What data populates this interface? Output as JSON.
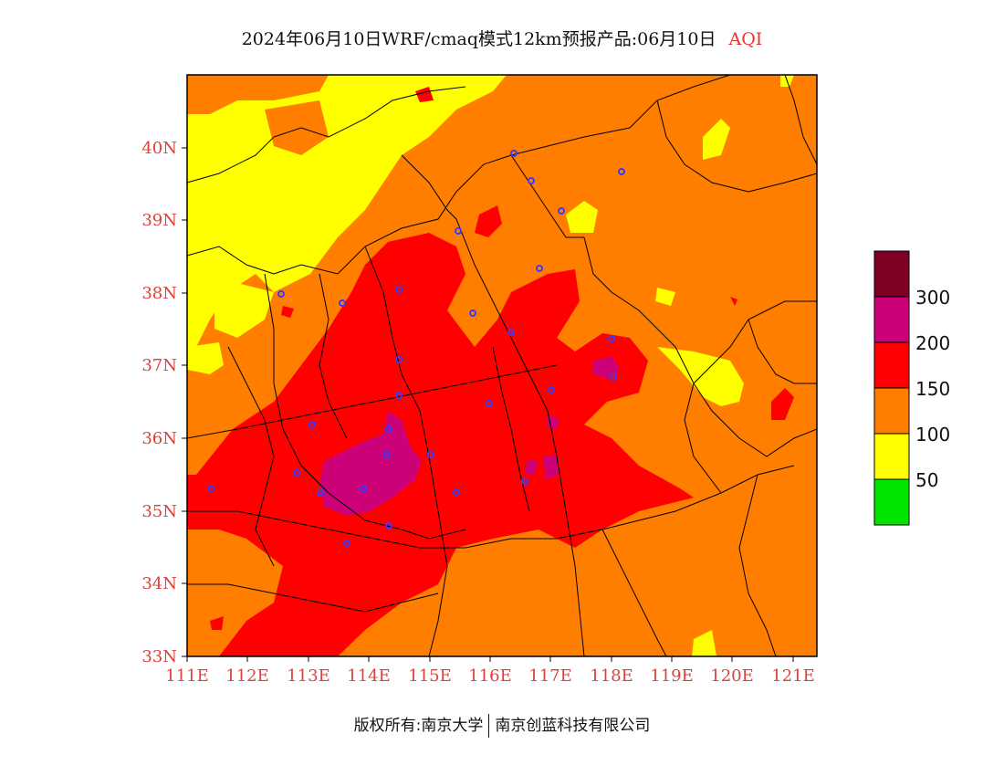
{
  "title": {
    "main": "2024年06月10日WRF/cmaq模式12km预报产品:06月10日",
    "variable": "AQI"
  },
  "map": {
    "lon_ticks": [
      "111E",
      "112E",
      "113E",
      "114E",
      "115E",
      "116E",
      "117E",
      "118E",
      "119E",
      "120E",
      "121E"
    ],
    "lat_ticks": [
      "40N",
      "39N",
      "38N",
      "37N",
      "36N",
      "35N",
      "34N",
      "33N"
    ],
    "lon_range": [
      111,
      121.4
    ],
    "lat_range": [
      33,
      41
    ],
    "colors": {
      "good": "#00e400",
      "moderate": "#ffff00",
      "usg": "#ff7e00",
      "unhealthy": "#ff0000",
      "very_unhealthy": "#cc0077",
      "hazardous": "#7e0023",
      "city_marker": "#3b3bff",
      "boundary": "#000000"
    }
  },
  "legend": {
    "labels": [
      "300",
      "200",
      "150",
      "100",
      "50"
    ],
    "colors": [
      "#7e0023",
      "#cc0077",
      "#ff0000",
      "#ff7e00",
      "#ffff00",
      "#00e400"
    ]
  },
  "footer": {
    "copyright": "版权所有:南京大学",
    "company": "南京创蓝科技有限公司"
  }
}
